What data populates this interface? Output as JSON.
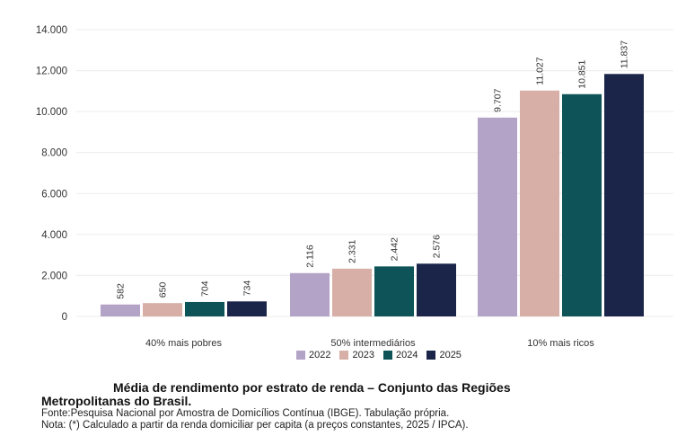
{
  "chart_data": {
    "type": "bar",
    "categories": [
      "40% mais pobres",
      "50% intermediários",
      "10% mais ricos"
    ],
    "series": [
      {
        "name": "2022",
        "color": "#b3a3c6",
        "values": [
          582,
          2116,
          9707
        ],
        "labels": [
          "582",
          "2.116",
          "9.707"
        ]
      },
      {
        "name": "2023",
        "color": "#d7afa6",
        "values": [
          650,
          2331,
          11027
        ],
        "labels": [
          "650",
          "2.331",
          "11.027"
        ]
      },
      {
        "name": "2024",
        "color": "#0d5358",
        "values": [
          704,
          2442,
          10851
        ],
        "labels": [
          "704",
          "2.442",
          "10.851"
        ]
      },
      {
        "name": "2025",
        "color": "#1b2549",
        "values": [
          734,
          2576,
          11837
        ],
        "labels": [
          "734",
          "2.576",
          "11.837"
        ]
      }
    ],
    "ylim": [
      0,
      14000
    ],
    "yticks": [
      0,
      2000,
      4000,
      6000,
      8000,
      10000,
      12000,
      14000
    ],
    "ytick_labels": [
      "0",
      "2.000",
      "4.000",
      "6.000",
      "8.000",
      "10.000",
      "12.000",
      "14.000"
    ],
    "grid": true,
    "legend_position": "bottom"
  },
  "caption": {
    "title_line1": "Média de rendimento por estrato de renda – Conjunto das Regiões",
    "title_line2": "Metropolitanas do Brasil.",
    "source": "Fonte:Pesquisa Nacional por Amostra de Domicílios Contínua (IBGE). Tabulação própria.",
    "note": "Nota: (*) Calculado a partir da renda domiciliar per capita (a preços constantes, 2025 / IPCA)."
  }
}
